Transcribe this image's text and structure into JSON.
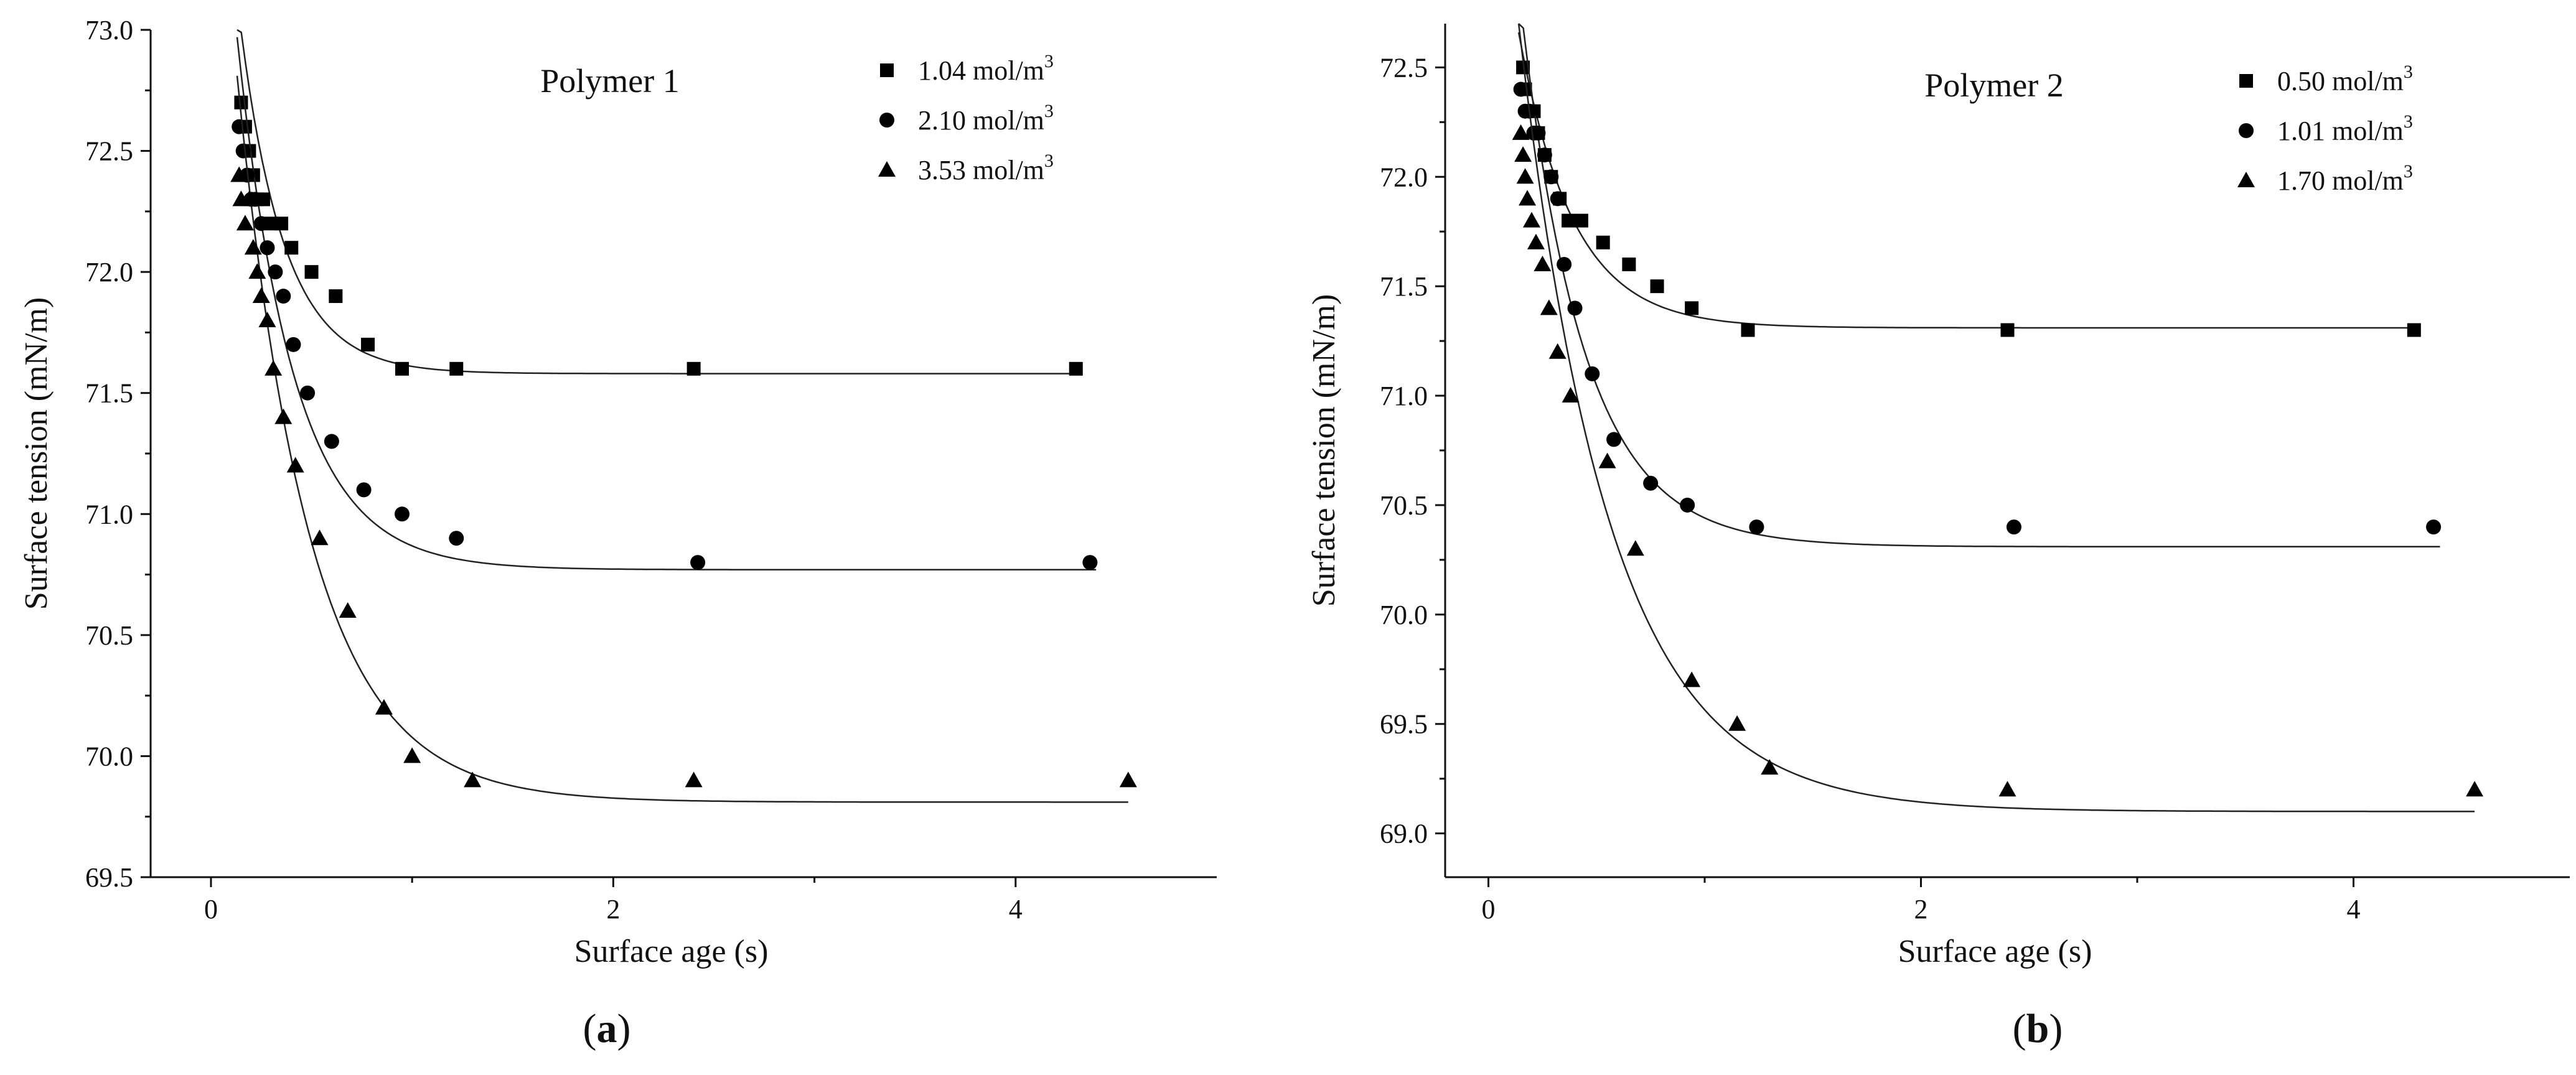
{
  "chart_data": [
    {
      "type": "scatter",
      "panel_label": "a",
      "title": "Polymer 1",
      "xlabel": "Surface age (s)",
      "ylabel": "Surface tension (mN/m)",
      "xlim": [
        -0.3,
        5.0
      ],
      "ylim": [
        69.5,
        73.0
      ],
      "xticks": [
        0,
        2,
        4
      ],
      "xtick_labels": [
        "0",
        "2",
        "4"
      ],
      "yticks": [
        69.5,
        70.0,
        70.5,
        71.0,
        71.5,
        72.0,
        72.5,
        73.0
      ],
      "ytick_labels": [
        "69.5",
        "70.0",
        "70.5",
        "71.0",
        "71.5",
        "72.0",
        "72.5",
        "73.0"
      ],
      "legend_position": "top-right",
      "series": [
        {
          "name": "1.04 mol/m",
          "name_sup": "3",
          "marker": "square",
          "points": [
            [
              0.15,
              72.7
            ],
            [
              0.17,
              72.6
            ],
            [
              0.19,
              72.5
            ],
            [
              0.21,
              72.4
            ],
            [
              0.23,
              72.3
            ],
            [
              0.26,
              72.3
            ],
            [
              0.3,
              72.2
            ],
            [
              0.35,
              72.2
            ],
            [
              0.4,
              72.1
            ],
            [
              0.5,
              72.0
            ],
            [
              0.62,
              71.9
            ],
            [
              0.78,
              71.7
            ],
            [
              0.95,
              71.6
            ],
            [
              1.22,
              71.6
            ],
            [
              2.4,
              71.6
            ],
            [
              4.3,
              71.6
            ]
          ],
          "fit": {
            "plateau": 71.58,
            "amplitude": 1.55,
            "tau": 0.22,
            "x_start": 0.13,
            "x_end": 4.3
          }
        },
        {
          "name": "2.10 mol/m",
          "name_sup": "3",
          "marker": "circle",
          "points": [
            [
              0.14,
              72.6
            ],
            [
              0.16,
              72.5
            ],
            [
              0.18,
              72.4
            ],
            [
              0.2,
              72.3
            ],
            [
              0.22,
              72.3
            ],
            [
              0.25,
              72.2
            ],
            [
              0.28,
              72.1
            ],
            [
              0.32,
              72.0
            ],
            [
              0.36,
              71.9
            ],
            [
              0.41,
              71.7
            ],
            [
              0.48,
              71.5
            ],
            [
              0.6,
              71.3
            ],
            [
              0.76,
              71.1
            ],
            [
              0.95,
              71.0
            ],
            [
              1.22,
              70.9
            ],
            [
              2.42,
              70.8
            ],
            [
              4.37,
              70.8
            ]
          ],
          "fit": {
            "plateau": 70.77,
            "amplitude": 2.2,
            "tau": 0.28,
            "x_start": 0.13,
            "x_end": 4.4
          }
        },
        {
          "name": "3.53 mol/m",
          "name_sup": "3",
          "marker": "triangle",
          "points": [
            [
              0.14,
              72.4
            ],
            [
              0.15,
              72.3
            ],
            [
              0.17,
              72.2
            ],
            [
              0.19,
              72.3
            ],
            [
              0.21,
              72.1
            ],
            [
              0.23,
              72.0
            ],
            [
              0.25,
              71.9
            ],
            [
              0.28,
              71.8
            ],
            [
              0.31,
              71.6
            ],
            [
              0.36,
              71.4
            ],
            [
              0.42,
              71.2
            ],
            [
              0.54,
              70.9
            ],
            [
              0.68,
              70.6
            ],
            [
              0.86,
              70.2
            ],
            [
              1.0,
              70.0
            ],
            [
              1.3,
              69.9
            ],
            [
              2.4,
              69.9
            ],
            [
              4.56,
              69.9
            ]
          ],
          "fit": {
            "plateau": 69.81,
            "amplitude": 3.0,
            "tau": 0.36,
            "x_start": 0.13,
            "x_end": 4.56
          }
        }
      ]
    },
    {
      "type": "scatter",
      "panel_label": "b",
      "title": "Polymer 2",
      "xlabel": "Surface age (s)",
      "ylabel": "Surface tension (mN/m)",
      "xlim": [
        -0.2,
        5.0
      ],
      "ylim": [
        68.8,
        72.7
      ],
      "xticks": [
        0,
        2,
        4
      ],
      "xtick_labels": [
        "0",
        "2",
        "4"
      ],
      "yticks": [
        69.0,
        69.5,
        70.0,
        70.5,
        71.0,
        71.5,
        72.0,
        72.5
      ],
      "ytick_labels": [
        "69.0",
        "69.5",
        "70.0",
        "70.5",
        "71.0",
        "71.5",
        "72.0",
        "72.5"
      ],
      "legend_position": "top-right",
      "series": [
        {
          "name": "0.50 mol/m",
          "name_sup": "3",
          "marker": "square",
          "points": [
            [
              0.16,
              72.5
            ],
            [
              0.17,
              72.4
            ],
            [
              0.19,
              72.3
            ],
            [
              0.21,
              72.3
            ],
            [
              0.23,
              72.2
            ],
            [
              0.26,
              72.1
            ],
            [
              0.29,
              72.0
            ],
            [
              0.33,
              71.9
            ],
            [
              0.37,
              71.8
            ],
            [
              0.43,
              71.8
            ],
            [
              0.53,
              71.7
            ],
            [
              0.65,
              71.6
            ],
            [
              0.78,
              71.5
            ],
            [
              0.94,
              71.4
            ],
            [
              1.2,
              71.3
            ],
            [
              2.4,
              71.3
            ],
            [
              4.28,
              71.3
            ]
          ],
          "fit": {
            "plateau": 71.31,
            "amplitude": 1.35,
            "tau": 0.25,
            "x_start": 0.14,
            "x_end": 4.3
          }
        },
        {
          "name": "1.01 mol/m",
          "name_sup": "3",
          "marker": "circle",
          "points": [
            [
              0.15,
              72.4
            ],
            [
              0.17,
              72.3
            ],
            [
              0.19,
              72.3
            ],
            [
              0.21,
              72.2
            ],
            [
              0.23,
              72.2
            ],
            [
              0.26,
              72.1
            ],
            [
              0.29,
              72.0
            ],
            [
              0.32,
              71.9
            ],
            [
              0.35,
              71.6
            ],
            [
              0.4,
              71.4
            ],
            [
              0.48,
              71.1
            ],
            [
              0.58,
              70.8
            ],
            [
              0.75,
              70.6
            ],
            [
              0.92,
              70.5
            ],
            [
              1.24,
              70.4
            ],
            [
              2.43,
              70.4
            ],
            [
              4.37,
              70.4
            ]
          ],
          "fit": {
            "plateau": 70.31,
            "amplitude": 2.55,
            "tau": 0.29,
            "x_start": 0.14,
            "x_end": 4.4
          }
        },
        {
          "name": "1.70 mol/m",
          "name_sup": "3",
          "marker": "triangle",
          "points": [
            [
              0.15,
              72.2
            ],
            [
              0.16,
              72.1
            ],
            [
              0.17,
              72.0
            ],
            [
              0.18,
              71.9
            ],
            [
              0.2,
              71.8
            ],
            [
              0.22,
              71.7
            ],
            [
              0.25,
              71.6
            ],
            [
              0.28,
              71.4
            ],
            [
              0.32,
              71.2
            ],
            [
              0.38,
              71.0
            ],
            [
              0.55,
              70.7
            ],
            [
              0.68,
              70.3
            ],
            [
              0.94,
              69.7
            ],
            [
              1.15,
              69.5
            ],
            [
              1.3,
              69.3
            ],
            [
              2.4,
              69.2
            ],
            [
              4.56,
              69.2
            ]
          ],
          "fit": {
            "plateau": 69.1,
            "amplitude": 3.6,
            "tau": 0.42,
            "x_start": 0.14,
            "x_end": 4.56
          }
        }
      ]
    }
  ]
}
